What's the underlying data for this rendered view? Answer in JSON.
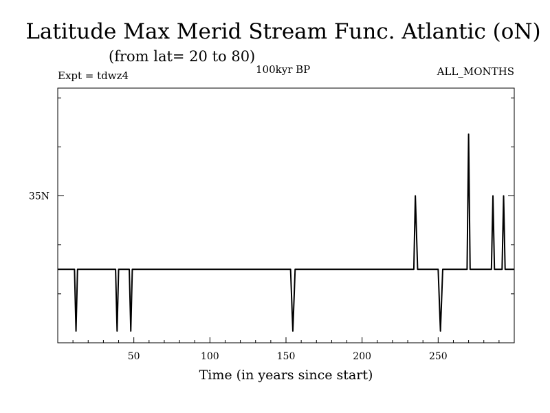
{
  "chart_data": {
    "type": "line",
    "title": "Latitude Max Merid Stream Func. Atlantic (oN)",
    "subtitle": "(from lat= 20 to 80)",
    "expt_label": "Expt = tdwz4",
    "period_label": "100kyr BP",
    "months_label": "ALL_MONTHS",
    "xlabel": "Time (in years since start)",
    "ylabel": "",
    "xlim": [
      0,
      300
    ],
    "ylim": [
      20,
      46
    ],
    "x_ticks": [
      50,
      100,
      150,
      200,
      250
    ],
    "x_minor_step": 10,
    "y_labeled_ticks": [
      {
        "value": 35,
        "label": "35N"
      }
    ],
    "y_minor_ticks": [
      25,
      30,
      40,
      45
    ],
    "grid": false,
    "series": [
      {
        "color": "#000000",
        "points": [
          [
            0,
            27.5
          ],
          [
            11,
            27.5
          ],
          [
            12,
            21.2
          ],
          [
            13,
            27.5
          ],
          [
            38,
            27.5
          ],
          [
            39,
            21.2
          ],
          [
            40,
            27.5
          ],
          [
            47,
            27.5
          ],
          [
            48,
            21.2
          ],
          [
            49,
            27.5
          ],
          [
            153,
            27.5
          ],
          [
            154.5,
            21.2
          ],
          [
            156,
            27.5
          ],
          [
            234,
            27.5
          ],
          [
            235,
            35.0
          ],
          [
            236.5,
            27.5
          ],
          [
            250,
            27.5
          ],
          [
            251.5,
            21.2
          ],
          [
            253,
            27.5
          ],
          [
            269,
            27.5
          ],
          [
            270,
            41.3
          ],
          [
            271,
            27.5
          ],
          [
            285,
            27.5
          ],
          [
            286,
            35.0
          ],
          [
            287,
            27.5
          ],
          [
            292,
            27.5
          ],
          [
            293,
            35.0
          ],
          [
            294,
            27.5
          ],
          [
            300,
            27.5
          ]
        ]
      }
    ]
  }
}
